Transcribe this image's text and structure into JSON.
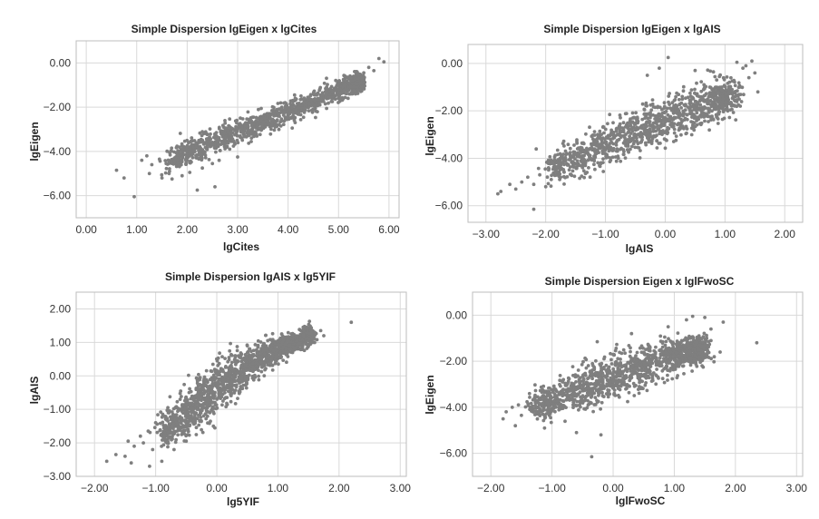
{
  "chart_data": [
    {
      "type": "scatter",
      "title": "Simple Dispersion lgEigen x lgCites",
      "xlabel": "lgCites",
      "ylabel": "lgEigen",
      "xlim": [
        -0.2,
        6.2
      ],
      "ylim": [
        -7.0,
        1.0
      ],
      "xticks": [
        0,
        1,
        2,
        3,
        4,
        5,
        6
      ],
      "yticks": [
        0,
        -2,
        -4,
        -6
      ],
      "xtick_labels": [
        "0.00",
        "1.00",
        "2.00",
        "3.00",
        "4.00",
        "5.00",
        "6.00"
      ],
      "ytick_labels": [
        "0.00",
        "−2.00",
        "−4.00",
        "−6.00"
      ],
      "grid": true,
      "color": "#7f7f7f",
      "cloud": [
        [
          1.6,
          -4.45,
          0.25
        ],
        [
          2.2,
          -3.9,
          0.28
        ],
        [
          2.8,
          -3.3,
          0.28
        ],
        [
          3.4,
          -2.75,
          0.26
        ],
        [
          4.0,
          -2.2,
          0.24
        ],
        [
          4.6,
          -1.65,
          0.22
        ],
        [
          5.1,
          -1.15,
          0.2
        ],
        [
          5.4,
          -0.85,
          0.16
        ]
      ],
      "points": [
        [
          5.8,
          0.2
        ],
        [
          5.9,
          0.05
        ],
        [
          5.6,
          -0.2
        ],
        [
          5.7,
          -0.35
        ],
        [
          5.5,
          -0.45
        ],
        [
          5.3,
          -0.6
        ],
        [
          5.1,
          -0.75
        ],
        [
          0.6,
          -4.85
        ],
        [
          0.75,
          -5.2
        ],
        [
          0.95,
          -6.05
        ],
        [
          1.1,
          -4.4
        ],
        [
          1.3,
          -4.6
        ],
        [
          1.25,
          -5.0
        ],
        [
          1.5,
          -5.2
        ],
        [
          1.7,
          -5.25
        ],
        [
          2.2,
          -5.75
        ],
        [
          2.55,
          -5.6
        ],
        [
          1.9,
          -5.1
        ],
        [
          2.05,
          -4.95
        ],
        [
          1.45,
          -4.35
        ],
        [
          1.2,
          -4.2
        ],
        [
          2.3,
          -4.75
        ],
        [
          2.5,
          -4.55
        ],
        [
          1.65,
          -4.9
        ],
        [
          3.0,
          -4.25
        ]
      ]
    },
    {
      "type": "scatter",
      "title": "Simple Dispersion lgEigen x lgAIS",
      "xlabel": "lgAIS",
      "ylabel": "lgEigen",
      "xlim": [
        -3.3,
        2.3
      ],
      "ylim": [
        -6.7,
        0.8
      ],
      "xticks": [
        -3,
        -2,
        -1,
        0,
        1,
        2
      ],
      "yticks": [
        0,
        -2,
        -4,
        -6
      ],
      "xtick_labels": [
        "−3.00",
        "−2.00",
        "−1.00",
        "0.00",
        "1.00",
        "2.00"
      ],
      "ytick_labels": [
        "0.00",
        "−2.00",
        "−4.00",
        "−6.00"
      ],
      "grid": true,
      "color": "#7f7f7f",
      "cloud": [
        [
          -1.9,
          -4.4,
          0.3
        ],
        [
          -1.4,
          -3.9,
          0.38
        ],
        [
          -0.9,
          -3.35,
          0.42
        ],
        [
          -0.4,
          -2.8,
          0.45
        ],
        [
          0.1,
          -2.3,
          0.45
        ],
        [
          0.6,
          -1.8,
          0.42
        ],
        [
          1.0,
          -1.4,
          0.35
        ]
      ],
      "points": [
        [
          -2.8,
          -5.5
        ],
        [
          -2.75,
          -5.4
        ],
        [
          -2.6,
          -5.1
        ],
        [
          -2.5,
          -5.3
        ],
        [
          -2.4,
          -5.0
        ],
        [
          -2.3,
          -4.8
        ],
        [
          -2.2,
          -6.15
        ],
        [
          -2.2,
          -5.1
        ],
        [
          -2.1,
          -4.7
        ],
        [
          -2.0,
          -5.2
        ],
        [
          1.3,
          -0.2
        ],
        [
          1.35,
          -0.1
        ],
        [
          1.45,
          0.1
        ],
        [
          1.55,
          -1.2
        ],
        [
          1.4,
          -0.6
        ],
        [
          1.2,
          0.05
        ],
        [
          0.05,
          0.25
        ],
        [
          -0.1,
          -0.2
        ],
        [
          -0.3,
          -0.5
        ],
        [
          0.5,
          -0.3
        ],
        [
          1.5,
          -0.4
        ]
      ]
    },
    {
      "type": "scatter",
      "title": "Simple Dispersion lgAIS x lg5YIF",
      "xlabel": "lg5YIF",
      "ylabel": "lgAIS",
      "xlim": [
        -2.3,
        3.1
      ],
      "ylim": [
        -3.0,
        2.5
      ],
      "xticks": [
        -2,
        -1,
        0,
        1,
        2,
        3
      ],
      "yticks": [
        2,
        1,
        0,
        -1,
        -2,
        -3
      ],
      "xtick_labels": [
        "−2.00",
        "−1.00",
        "0.00",
        "1.00",
        "2.00",
        "3.00"
      ],
      "ytick_labels": [
        "2.00",
        "1.00",
        "0.00",
        "−1.00",
        "−2.00",
        "−3.00"
      ],
      "grid": true,
      "color": "#7f7f7f",
      "cloud": [
        [
          -0.9,
          -1.75,
          0.22
        ],
        [
          -0.6,
          -1.3,
          0.28
        ],
        [
          -0.3,
          -0.85,
          0.32
        ],
        [
          0.0,
          -0.35,
          0.34
        ],
        [
          0.3,
          0.05,
          0.3
        ],
        [
          0.6,
          0.4,
          0.26
        ],
        [
          0.9,
          0.7,
          0.22
        ],
        [
          1.2,
          0.95,
          0.18
        ],
        [
          1.5,
          1.2,
          0.12
        ]
      ],
      "points": [
        [
          2.2,
          1.6
        ],
        [
          1.7,
          1.35
        ],
        [
          1.6,
          1.3
        ],
        [
          1.75,
          1.2
        ],
        [
          -1.8,
          -2.55
        ],
        [
          -1.65,
          -2.35
        ],
        [
          -1.5,
          -2.4
        ],
        [
          -1.35,
          -2.1
        ],
        [
          -1.4,
          -2.6
        ],
        [
          -1.2,
          -2.0
        ],
        [
          -1.25,
          -1.8
        ],
        [
          -1.05,
          -2.2
        ],
        [
          -1.1,
          -2.7
        ],
        [
          -0.9,
          -2.55
        ],
        [
          -0.7,
          -2.2
        ],
        [
          -0.5,
          -1.95
        ],
        [
          -1.0,
          -1.4
        ],
        [
          -0.8,
          -0.95
        ],
        [
          -0.6,
          -0.7
        ],
        [
          -1.45,
          -1.95
        ],
        [
          0.2,
          0.55
        ],
        [
          0.5,
          0.9
        ]
      ]
    },
    {
      "type": "scatter",
      "title": "Simple Dispersion Eigen x lglFwoSC",
      "xlabel": "lglFwoSC",
      "ylabel": "lgEigen",
      "xlim": [
        -2.3,
        3.1
      ],
      "ylim": [
        -7.0,
        1.0
      ],
      "xticks": [
        -2,
        -1,
        0,
        1,
        2,
        3
      ],
      "yticks": [
        0,
        -2,
        -4,
        -6
      ],
      "xtick_labels": [
        "−2.00",
        "−1.00",
        "0.00",
        "1.00",
        "2.00",
        "3.00"
      ],
      "ytick_labels": [
        "0.00",
        "−2.00",
        "−4.00",
        "−6.00"
      ],
      "grid": true,
      "color": "#7f7f7f",
      "cloud": [
        [
          -1.3,
          -4.0,
          0.3
        ],
        [
          -0.9,
          -3.6,
          0.38
        ],
        [
          -0.5,
          -3.2,
          0.42
        ],
        [
          -0.1,
          -2.8,
          0.45
        ],
        [
          0.3,
          -2.4,
          0.45
        ],
        [
          0.7,
          -2.0,
          0.42
        ],
        [
          1.1,
          -1.7,
          0.36
        ],
        [
          1.4,
          -1.5,
          0.3
        ]
      ],
      "points": [
        [
          -1.75,
          -4.2
        ],
        [
          -1.8,
          -4.5
        ],
        [
          -1.65,
          -4.0
        ],
        [
          -1.6,
          -4.8
        ],
        [
          -1.5,
          -4.35
        ],
        [
          -1.55,
          -3.9
        ],
        [
          -0.35,
          -6.15
        ],
        [
          -0.6,
          -5.1
        ],
        [
          -0.2,
          -5.2
        ],
        [
          2.35,
          -1.2
        ],
        [
          1.8,
          -0.3
        ],
        [
          1.6,
          -0.6
        ],
        [
          1.5,
          -0.1
        ],
        [
          1.2,
          -0.2
        ],
        [
          0.9,
          -0.5
        ],
        [
          1.3,
          -0.05
        ],
        [
          0.3,
          -0.8
        ],
        [
          1.75,
          -1.6
        ]
      ]
    }
  ]
}
